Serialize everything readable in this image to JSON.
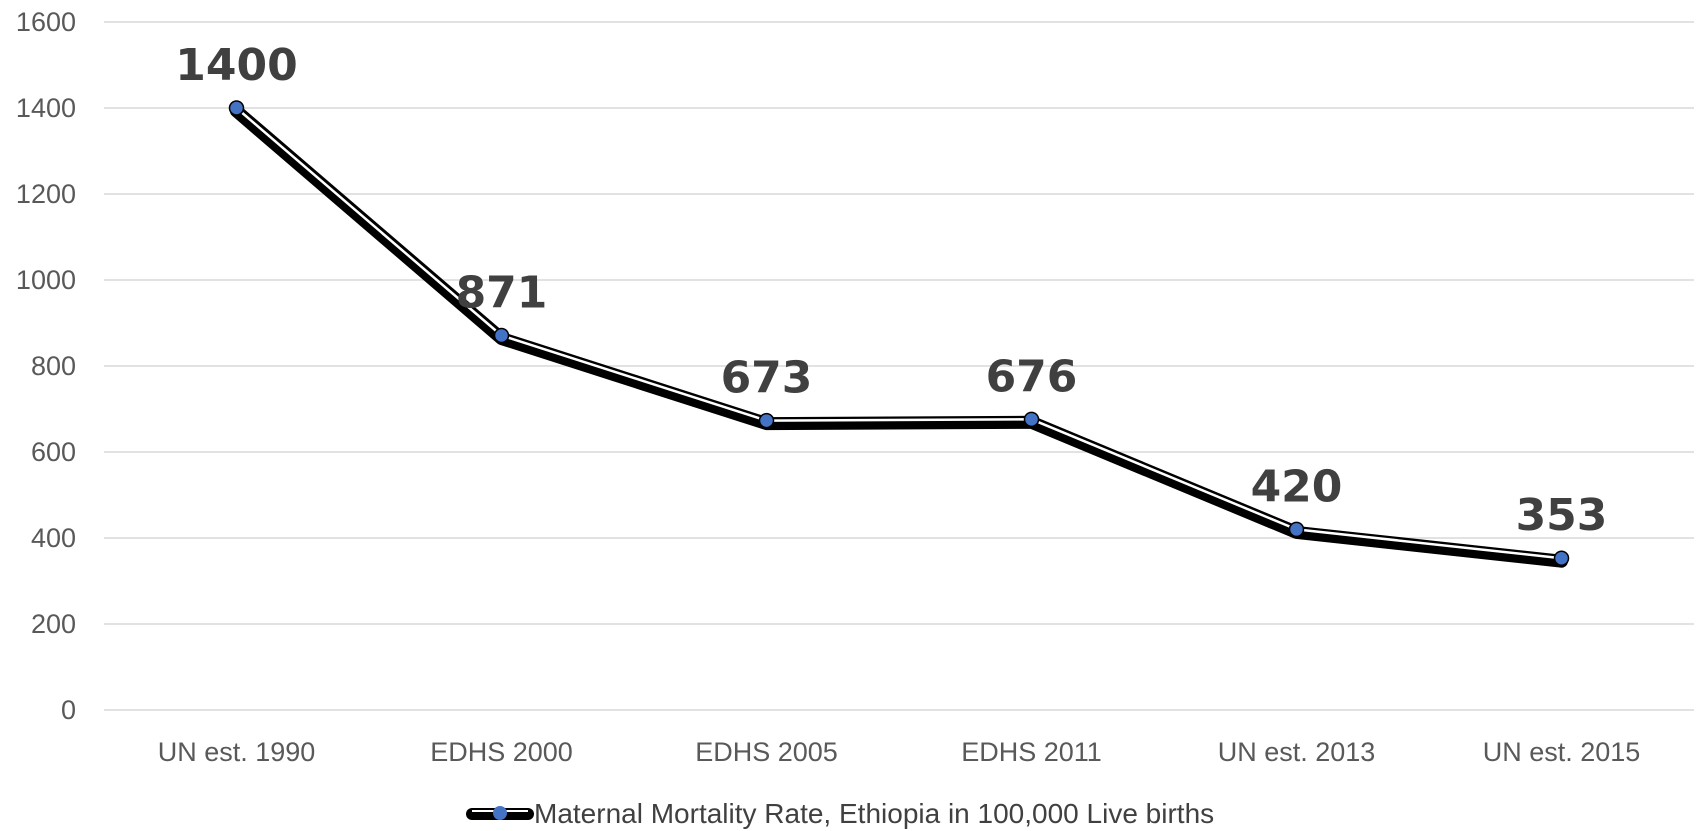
{
  "chart_data": {
    "type": "line",
    "categories": [
      "UN est. 1990",
      "EDHS 2000",
      "EDHS 2005",
      "EDHS 2011",
      "UN est. 2013",
      "UN est. 2015"
    ],
    "series": [
      {
        "name": "Maternal Mortality Rate, Ethiopia in 100,000 Live births",
        "values": [
          1400,
          871,
          673,
          676,
          420,
          353
        ]
      }
    ],
    "data_labels": [
      "1400",
      "871",
      "673",
      "676",
      "420",
      "353"
    ],
    "ylim": [
      0,
      1600
    ],
    "yticks": [
      0,
      200,
      400,
      600,
      800,
      1000,
      1200,
      1400,
      1600
    ],
    "grid": true,
    "legend_position": "bottom",
    "colors": {
      "line": "#000000",
      "line_highlight": "#ffffff",
      "marker": "#4472c4",
      "grid": "#d9d9d9",
      "tick_text": "#595959",
      "label_text": "#404040"
    }
  }
}
